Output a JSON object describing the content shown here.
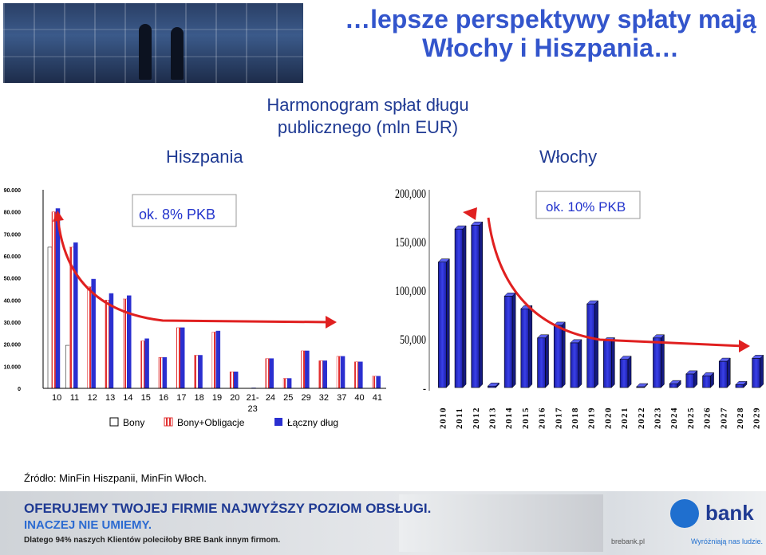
{
  "headline": "…lepsze perspektywy spłaty mają Włochy i Hiszpania…",
  "subtitle": "Harmonogram spłat długu publicznego (mln EUR)",
  "source": "Źródło: MinFin Hiszpanii, MinFin Włoch.",
  "colors": {
    "accent": "#3355cc",
    "title": "#1f3a93",
    "bar_blue": "#2a2fd0",
    "arrow_red": "#e02020"
  },
  "chart_data": [
    {
      "type": "bar",
      "title": "Hiszpania",
      "annotation": "ok. 8% PKB",
      "categories": [
        "10",
        "11",
        "12",
        "13",
        "14",
        "15",
        "16",
        "17",
        "18",
        "19",
        "20",
        "21-23",
        "24",
        "25",
        "29",
        "32",
        "37",
        "40",
        "41"
      ],
      "ylim": [
        0,
        90000
      ],
      "yticks": [
        "0",
        "10.000",
        "20.000",
        "30.000",
        "40.000",
        "50.000",
        "60.000",
        "70.000",
        "80.000",
        "90.000"
      ],
      "legend": [
        "Bony",
        "Bony+Obligacje",
        "Łączny dług"
      ],
      "series": [
        {
          "name": "Bony",
          "values": [
            64000,
            19500,
            0,
            0,
            0,
            0,
            0,
            0,
            0,
            0,
            0,
            0,
            0,
            0,
            0,
            0,
            0,
            0,
            0
          ]
        },
        {
          "name": "Bony+Obligacje",
          "values": [
            80000,
            64000,
            46000,
            40000,
            40500,
            21500,
            14000,
            27500,
            15000,
            25500,
            7500,
            0,
            13500,
            4500,
            17000,
            12500,
            14500,
            12000,
            5500
          ]
        },
        {
          "name": "Łączny dług",
          "values": [
            81500,
            66000,
            49500,
            43000,
            42000,
            22500,
            14000,
            27500,
            15000,
            26000,
            7500,
            200,
            13500,
            4500,
            17000,
            12500,
            14500,
            12000,
            5500
          ]
        }
      ]
    },
    {
      "type": "bar",
      "title": "Włochy",
      "annotation": "ok. 10% PKB",
      "categories": [
        "2010",
        "2011",
        "2012",
        "2013",
        "2014",
        "2015",
        "2016",
        "2017",
        "2018",
        "2019",
        "2020",
        "2021",
        "2022",
        "2023",
        "2024",
        "2025",
        "2026",
        "2027",
        "2028",
        "2029"
      ],
      "ylim": [
        0,
        200000
      ],
      "yticks": [
        "-",
        "50,000",
        "100,000",
        "150,000",
        "200,000"
      ],
      "series": [
        {
          "name": "Włochy",
          "values": [
            129000,
            163000,
            167000,
            1500,
            94000,
            81000,
            51000,
            64000,
            46000,
            86000,
            48000,
            29000,
            0,
            51000,
            4000,
            14000,
            12000,
            27000,
            3000,
            30000
          ]
        }
      ]
    }
  ],
  "banner": {
    "line1": "OFERUJEMY TWOJEJ FIRMIE NAJWYŻSZY POZIOM OBSŁUGI.",
    "line2": "INACZEJ NIE UMIEMY.",
    "line3": "Dlatego 94% naszych Klientów poleciłoby BRE Bank innym firmom.",
    "url": "brebank.pl",
    "logo_text": "bank",
    "tagline": "Wyróżniają nas ludzie."
  }
}
